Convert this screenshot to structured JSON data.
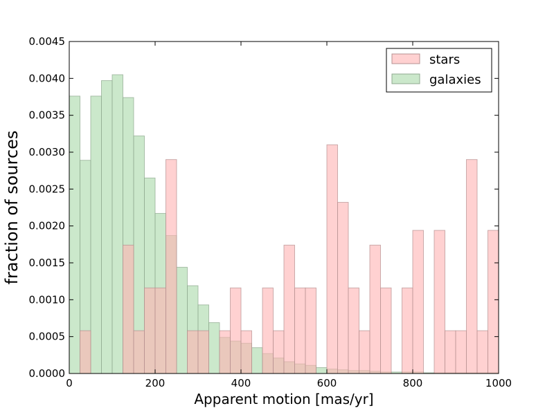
{
  "chart_data": {
    "type": "bar",
    "xlabel": "Apparent motion [mas/yr]",
    "ylabel": "fraction of sources",
    "xlim": [
      0,
      1000
    ],
    "ylim": [
      0,
      0.0045
    ],
    "bin_width": 25,
    "x_ticks": [
      "0",
      "200",
      "400",
      "600",
      "800",
      "1000"
    ],
    "y_ticks": [
      "0.0000",
      "0.0005",
      "0.0010",
      "0.0015",
      "0.0020",
      "0.0025",
      "0.0030",
      "0.0035",
      "0.0040",
      "0.0045"
    ],
    "legend_position": "upper-right",
    "grid": false,
    "series": [
      {
        "name": "stars",
        "color": "#ffb3b3",
        "bin_starts": [
          0,
          25,
          50,
          75,
          100,
          125,
          150,
          175,
          200,
          225,
          250,
          275,
          300,
          325,
          350,
          375,
          400,
          425,
          450,
          475,
          500,
          525,
          550,
          575,
          600,
          625,
          650,
          675,
          700,
          725,
          750,
          775,
          800,
          825,
          850,
          875,
          900,
          925,
          950,
          975
        ],
        "values": [
          0,
          0.00058,
          0,
          0,
          0,
          0.00174,
          0.00058,
          0.00116,
          0.00116,
          0.0029,
          0,
          0.00058,
          0.00058,
          0,
          0.00058,
          0.00116,
          0.00058,
          0,
          0.00116,
          0.00058,
          0.00174,
          0.00116,
          0.00116,
          0,
          0.0031,
          0.00232,
          0.00116,
          0.00058,
          0.00174,
          0.00116,
          0,
          0.00116,
          0.00194,
          0,
          0.00194,
          0.00058,
          0.00058,
          0.0029,
          0.00058,
          0.00194
        ]
      },
      {
        "name": "galaxies",
        "color": "#a8d8a8",
        "bin_starts": [
          0,
          25,
          50,
          75,
          100,
          125,
          150,
          175,
          200,
          225,
          250,
          275,
          300,
          325,
          350,
          375,
          400,
          425,
          450,
          475,
          500,
          525,
          550,
          575,
          600,
          625,
          650,
          675,
          700,
          725,
          750,
          775,
          800,
          825,
          850,
          875,
          900,
          925,
          950,
          975
        ],
        "values": [
          0.00376,
          0.00289,
          0.00376,
          0.00397,
          0.00405,
          0.00374,
          0.00322,
          0.00265,
          0.00217,
          0.00187,
          0.00144,
          0.00119,
          0.00093,
          0.00069,
          0.00049,
          0.00044,
          0.00041,
          0.00035,
          0.00027,
          0.00021,
          0.00016,
          0.00013,
          0.00011,
          8e-05,
          6e-05,
          5e-05,
          4e-05,
          4e-05,
          3e-05,
          2e-05,
          2e-05,
          2e-05,
          2e-05,
          1e-05,
          1e-05,
          1e-05,
          1e-05,
          1e-05,
          1e-05,
          1e-05
        ]
      }
    ]
  }
}
